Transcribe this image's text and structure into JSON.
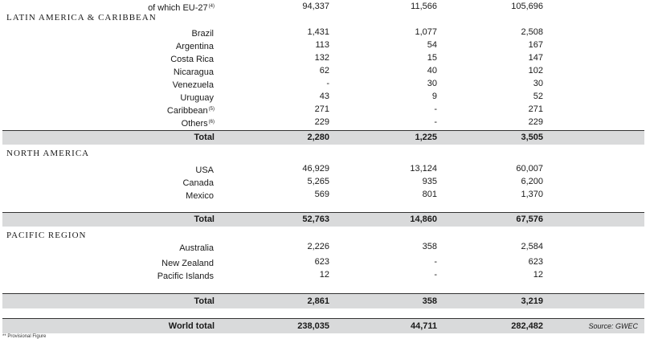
{
  "top_row": {
    "label": "of which EU-27",
    "note": "(4)",
    "c1": "94,337",
    "c2": "11,566",
    "c3": "105,696"
  },
  "latin_america": {
    "title": "LATIN AMERICA & CARIBBEAN",
    "rows": [
      {
        "label": "Brazil",
        "note": "",
        "c1": "1,431",
        "c2": "1,077",
        "c3": "2,508"
      },
      {
        "label": "Argentina",
        "note": "",
        "c1": "113",
        "c2": "54",
        "c3": "167"
      },
      {
        "label": "Costa Rica",
        "note": "",
        "c1": "132",
        "c2": "15",
        "c3": "147"
      },
      {
        "label": "Nicaragua",
        "note": "",
        "c1": "62",
        "c2": "40",
        "c3": "102"
      },
      {
        "label": "Venezuela",
        "note": "",
        "c1": "-",
        "c2": "30",
        "c3": "30"
      },
      {
        "label": "Uruguay",
        "note": "",
        "c1": "43",
        "c2": "9",
        "c3": "52"
      },
      {
        "label": "Caribbean",
        "note": "(5)",
        "c1": "271",
        "c2": "-",
        "c3": "271"
      },
      {
        "label": "Others",
        "note": "(6)",
        "c1": "229",
        "c2": "-",
        "c3": "229"
      }
    ],
    "total": {
      "label": "Total",
      "c1": "2,280",
      "c2": "1,225",
      "c3": "3,505"
    }
  },
  "north_america": {
    "title": "NORTH AMERICA",
    "rows": [
      {
        "label": "USA",
        "note": "",
        "c1": "46,929",
        "c2": "13,124",
        "c3": "60,007"
      },
      {
        "label": "Canada",
        "note": "",
        "c1": "5,265",
        "c2": "935",
        "c3": "6,200"
      },
      {
        "label": "Mexico",
        "note": "",
        "c1": "569",
        "c2": "801",
        "c3": "1,370"
      }
    ],
    "total": {
      "label": "Total",
      "c1": "52,763",
      "c2": "14,860",
      "c3": "67,576"
    }
  },
  "pacific": {
    "title": "PACIFIC REGION",
    "rows": [
      {
        "label": "Australia",
        "note": "",
        "c1": "2,226",
        "c2": "358",
        "c3": "2,584"
      },
      {
        "label": "New Zealand",
        "note": "",
        "c1": "623",
        "c2": "-",
        "c3": "623"
      },
      {
        "label": "Pacific Islands",
        "note": "",
        "c1": "12",
        "c2": "-",
        "c3": "12"
      }
    ],
    "total": {
      "label": "Total",
      "c1": "2,861",
      "c2": "358",
      "c3": "3,219"
    }
  },
  "world_total": {
    "label": "World total",
    "c1": "238,035",
    "c2": "44,711",
    "c3": "282,482",
    "source": "Source: GWEC"
  },
  "footnote": "** Provisional Figure"
}
